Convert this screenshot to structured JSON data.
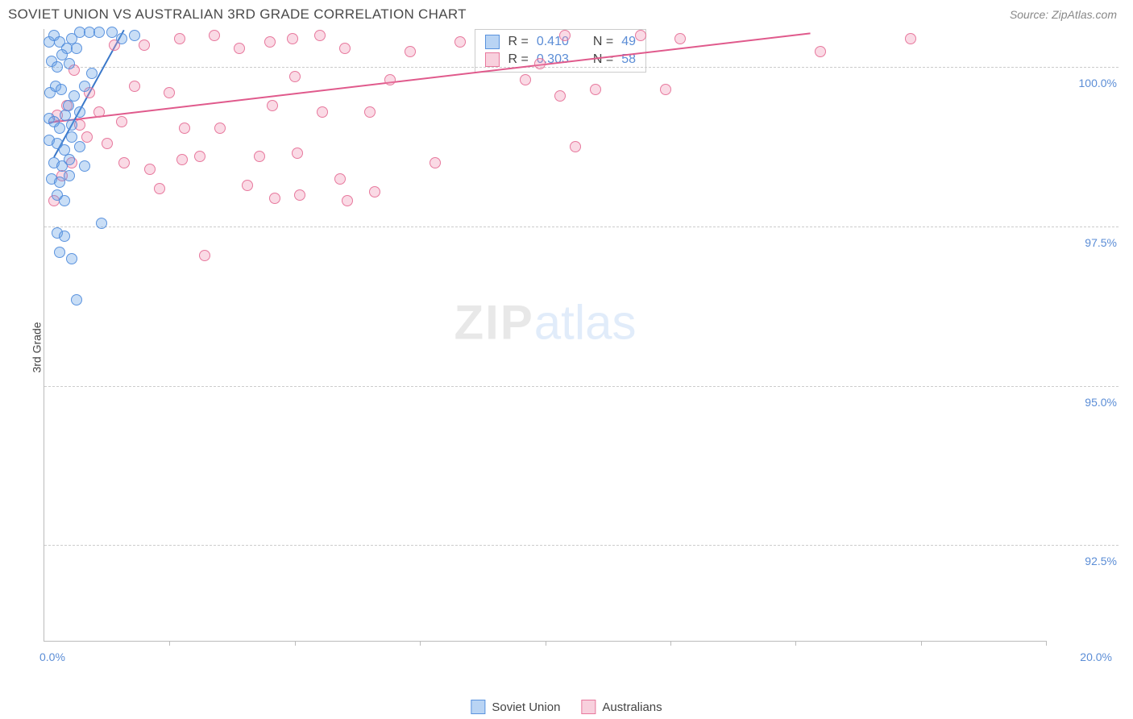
{
  "header": {
    "title": "SOVIET UNION VS AUSTRALIAN 3RD GRADE CORRELATION CHART",
    "source": "Source: ZipAtlas.com"
  },
  "chart": {
    "type": "scatter",
    "y_axis_label": "3rd Grade",
    "x_axis_label_left": "0.0%",
    "x_axis_label_right": "20.0%",
    "xlim": [
      0,
      20
    ],
    "ylim": [
      91,
      100.6
    ],
    "x_ticks": [
      2.5,
      5,
      7.5,
      10,
      12.5,
      15,
      17.5,
      20
    ],
    "y_gridlines": [
      92.5,
      95.0,
      97.5,
      100.0
    ],
    "y_tick_labels": [
      "92.5%",
      "95.0%",
      "97.5%",
      "100.0%"
    ],
    "background_color": "#ffffff",
    "grid_color": "#cccccc",
    "axis_color": "#bbbbbb",
    "tick_label_color": "#5b8dd6",
    "tick_label_fontsize": 14,
    "marker_radius": 7,
    "series": {
      "soviet": {
        "label": "Soviet Union",
        "fill_color": "rgba(100,160,230,0.35)",
        "stroke_color": "rgba(80,140,220,0.9)",
        "regression_color": "#3a78c9",
        "regression": {
          "x1": 0.2,
          "y1": 98.6,
          "x2": 1.6,
          "y2": 100.6
        },
        "r_value": "0.410",
        "n_value": "49",
        "points": [
          [
            0.1,
            100.4
          ],
          [
            0.2,
            100.5
          ],
          [
            0.3,
            100.4
          ],
          [
            0.45,
            100.3
          ],
          [
            0.55,
            100.45
          ],
          [
            0.7,
            100.55
          ],
          [
            0.15,
            100.1
          ],
          [
            0.25,
            100.0
          ],
          [
            0.35,
            100.2
          ],
          [
            0.5,
            100.05
          ],
          [
            0.65,
            100.3
          ],
          [
            0.9,
            100.55
          ],
          [
            1.1,
            100.55
          ],
          [
            1.35,
            100.55
          ],
          [
            1.55,
            100.45
          ],
          [
            1.8,
            100.5
          ],
          [
            0.12,
            99.6
          ],
          [
            0.22,
            99.7
          ],
          [
            0.33,
            99.65
          ],
          [
            0.48,
            99.4
          ],
          [
            0.6,
            99.55
          ],
          [
            0.8,
            99.7
          ],
          [
            0.1,
            99.2
          ],
          [
            0.2,
            99.15
          ],
          [
            0.3,
            99.05
          ],
          [
            0.42,
            99.25
          ],
          [
            0.55,
            99.1
          ],
          [
            0.7,
            99.3
          ],
          [
            0.95,
            99.9
          ],
          [
            0.1,
            98.85
          ],
          [
            0.25,
            98.8
          ],
          [
            0.4,
            98.7
          ],
          [
            0.55,
            98.9
          ],
          [
            0.7,
            98.75
          ],
          [
            0.2,
            98.5
          ],
          [
            0.35,
            98.45
          ],
          [
            0.5,
            98.55
          ],
          [
            0.15,
            98.25
          ],
          [
            0.3,
            98.2
          ],
          [
            0.5,
            98.3
          ],
          [
            0.8,
            98.45
          ],
          [
            0.25,
            98.0
          ],
          [
            0.4,
            97.9
          ],
          [
            0.25,
            97.4
          ],
          [
            0.4,
            97.35
          ],
          [
            1.15,
            97.55
          ],
          [
            0.3,
            97.1
          ],
          [
            0.55,
            97.0
          ],
          [
            0.65,
            96.35
          ]
        ]
      },
      "australian": {
        "label": "Australians",
        "fill_color": "rgba(240,150,180,0.35)",
        "stroke_color": "rgba(230,110,150,0.9)",
        "regression_color": "#e05a8c",
        "regression": {
          "x1": 0.1,
          "y1": 99.15,
          "x2": 15.3,
          "y2": 100.55
        },
        "r_value": "0.303",
        "n_value": "58",
        "points": [
          [
            0.25,
            99.25
          ],
          [
            0.45,
            99.4
          ],
          [
            0.7,
            99.1
          ],
          [
            0.85,
            98.9
          ],
          [
            0.55,
            98.5
          ],
          [
            0.35,
            98.3
          ],
          [
            0.9,
            99.6
          ],
          [
            1.1,
            99.3
          ],
          [
            1.25,
            98.8
          ],
          [
            1.4,
            100.35
          ],
          [
            1.55,
            99.15
          ],
          [
            1.8,
            99.7
          ],
          [
            1.6,
            98.5
          ],
          [
            2.0,
            100.35
          ],
          [
            2.1,
            98.4
          ],
          [
            2.3,
            98.1
          ],
          [
            2.5,
            99.6
          ],
          [
            2.7,
            100.45
          ],
          [
            2.75,
            98.55
          ],
          [
            2.8,
            99.05
          ],
          [
            3.1,
            98.6
          ],
          [
            3.2,
            97.05
          ],
          [
            3.4,
            100.5
          ],
          [
            3.5,
            99.05
          ],
          [
            3.9,
            100.3
          ],
          [
            4.05,
            98.15
          ],
          [
            4.3,
            98.6
          ],
          [
            4.5,
            100.4
          ],
          [
            4.55,
            99.4
          ],
          [
            4.6,
            97.95
          ],
          [
            4.95,
            100.45
          ],
          [
            5.0,
            99.85
          ],
          [
            5.05,
            98.65
          ],
          [
            5.1,
            98.0
          ],
          [
            5.5,
            100.5
          ],
          [
            5.55,
            99.3
          ],
          [
            5.9,
            98.25
          ],
          [
            6.0,
            100.3
          ],
          [
            6.05,
            97.9
          ],
          [
            6.5,
            99.3
          ],
          [
            6.6,
            98.05
          ],
          [
            6.9,
            99.8
          ],
          [
            7.3,
            100.25
          ],
          [
            7.8,
            98.5
          ],
          [
            8.3,
            100.4
          ],
          [
            9.6,
            99.8
          ],
          [
            9.9,
            100.05
          ],
          [
            10.3,
            99.55
          ],
          [
            10.4,
            100.5
          ],
          [
            10.6,
            98.75
          ],
          [
            11.0,
            99.65
          ],
          [
            11.9,
            100.5
          ],
          [
            12.4,
            99.65
          ],
          [
            12.7,
            100.45
          ],
          [
            15.5,
            100.25
          ],
          [
            17.3,
            100.45
          ],
          [
            0.2,
            97.9
          ],
          [
            0.6,
            99.95
          ]
        ]
      }
    },
    "stats_format": {
      "r_label": "R =",
      "n_label": "N ="
    },
    "watermark": {
      "zip": "ZIP",
      "atlas": "atlas"
    }
  }
}
